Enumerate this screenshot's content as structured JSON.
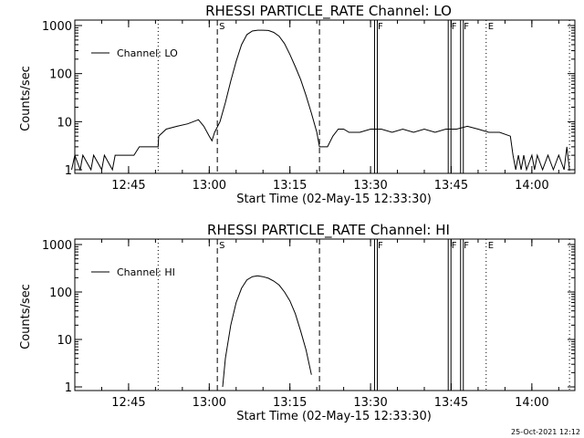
{
  "footer_timestamp": "25-Oct-2021 12:12",
  "chart_data": [
    {
      "type": "line",
      "title": "RHESSI PARTICLE_RATE Channel: LO",
      "xlabel": "Start Time (02-May-15 12:33:30)",
      "ylabel": "Counts/sec",
      "yscale": "log",
      "xlim": [
        "12:35",
        "14:08"
      ],
      "ylim": [
        1,
        1000
      ],
      "x_ticks": [
        "12:45",
        "13:00",
        "13:15",
        "13:30",
        "13:45",
        "14:00"
      ],
      "y_ticks": [
        "1",
        "10",
        "100",
        "1000"
      ],
      "legend": {
        "position": "upper-left",
        "entries": [
          "Channel: LO"
        ]
      },
      "markers": [
        {
          "label": "",
          "time": "12:50.5",
          "style": "dotted"
        },
        {
          "label": "S",
          "time": "13:01.5",
          "style": "dashed"
        },
        {
          "label": "",
          "time": "13:20.5",
          "style": "dashed"
        },
        {
          "label": "F",
          "time": "13:31",
          "style": "double"
        },
        {
          "label": "F",
          "time": "13:44.7",
          "style": "double"
        },
        {
          "label": "F",
          "time": "13:47",
          "style": "double"
        },
        {
          "label": "E",
          "time": "13:51.5",
          "style": "dotted"
        },
        {
          "label": "",
          "time": "14:07",
          "style": "dotted"
        }
      ],
      "series": [
        {
          "name": "Channel: LO",
          "points": [
            [
              "12:34.4",
              1
            ],
            [
              "12:35",
              2
            ],
            [
              "12:36",
              1
            ],
            [
              "12:36.5",
              2
            ],
            [
              "12:38",
              1
            ],
            [
              "12:38.5",
              2
            ],
            [
              "12:40",
              1
            ],
            [
              "12:40.5",
              2
            ],
            [
              "12:42",
              1
            ],
            [
              "12:42.5",
              2
            ],
            [
              "12:45",
              2
            ],
            [
              "12:46",
              2
            ],
            [
              "12:47",
              3
            ],
            [
              "12:50.5",
              3
            ],
            [
              "12:50.6",
              5
            ],
            [
              "12:52",
              7
            ],
            [
              "12:54",
              8
            ],
            [
              "12:56",
              9
            ],
            [
              "12:58",
              11
            ],
            [
              "12:59",
              8
            ],
            [
              "13:00",
              5
            ],
            [
              "13:00.5",
              4
            ],
            [
              "13:01",
              6
            ],
            [
              "13:02",
              10
            ],
            [
              "13:03",
              25
            ],
            [
              "13:04",
              70
            ],
            [
              "13:05",
              180
            ],
            [
              "13:06",
              400
            ],
            [
              "13:07",
              650
            ],
            [
              "13:08",
              770
            ],
            [
              "13:09",
              800
            ],
            [
              "13:10",
              800
            ],
            [
              "13:11",
              790
            ],
            [
              "13:12",
              720
            ],
            [
              "13:13",
              600
            ],
            [
              "13:14",
              420
            ],
            [
              "13:15",
              250
            ],
            [
              "13:16",
              140
            ],
            [
              "13:17",
              75
            ],
            [
              "13:18",
              35
            ],
            [
              "13:19",
              15
            ],
            [
              "13:20",
              6
            ],
            [
              "13:20.5",
              3
            ],
            [
              "13:21",
              3
            ],
            [
              "13:22",
              3
            ],
            [
              "13:23",
              5
            ],
            [
              "13:24",
              7
            ],
            [
              "13:25",
              7
            ],
            [
              "13:26",
              6
            ],
            [
              "13:28",
              6
            ],
            [
              "13:30",
              7
            ],
            [
              "13:32",
              7
            ],
            [
              "13:34",
              6
            ],
            [
              "13:36",
              7
            ],
            [
              "13:38",
              6
            ],
            [
              "13:40",
              7
            ],
            [
              "13:42",
              6
            ],
            [
              "13:44",
              7
            ],
            [
              "13:46",
              7
            ],
            [
              "13:48",
              8
            ],
            [
              "13:50",
              7
            ],
            [
              "13:52",
              6
            ],
            [
              "13:54",
              6
            ],
            [
              "13:56",
              5
            ],
            [
              "13:56.5",
              2
            ],
            [
              "13:57",
              1
            ],
            [
              "13:57.5",
              2
            ],
            [
              "13:58",
              1
            ],
            [
              "13:58.5",
              2
            ],
            [
              "13:59",
              1
            ],
            [
              "14:00",
              2
            ],
            [
              "14:00.5",
              1
            ],
            [
              "14:01",
              2
            ],
            [
              "14:02",
              1
            ],
            [
              "14:03",
              2
            ],
            [
              "14:04",
              1
            ],
            [
              "14:05",
              2
            ],
            [
              "14:06",
              1
            ],
            [
              "14:06.5",
              3
            ],
            [
              "14:07",
              1
            ]
          ]
        }
      ]
    },
    {
      "type": "line",
      "title": "RHESSI PARTICLE_RATE Channel: HI",
      "xlabel": "Start Time (02-May-15 12:33:30)",
      "ylabel": "Counts/sec",
      "yscale": "log",
      "xlim": [
        "12:35",
        "14:08"
      ],
      "ylim": [
        1,
        1000
      ],
      "x_ticks": [
        "12:45",
        "13:00",
        "13:15",
        "13:30",
        "13:45",
        "14:00"
      ],
      "y_ticks": [
        "1",
        "10",
        "100",
        "1000"
      ],
      "legend": {
        "position": "upper-left",
        "entries": [
          "Channel: HI"
        ]
      },
      "markers": [
        {
          "label": "",
          "time": "12:50.5",
          "style": "dotted"
        },
        {
          "label": "S",
          "time": "13:01.5",
          "style": "dashed"
        },
        {
          "label": "",
          "time": "13:20.5",
          "style": "dashed"
        },
        {
          "label": "F",
          "time": "13:31",
          "style": "double"
        },
        {
          "label": "F",
          "time": "13:44.7",
          "style": "double"
        },
        {
          "label": "F",
          "time": "13:47",
          "style": "double"
        },
        {
          "label": "E",
          "time": "13:51.5",
          "style": "dotted"
        },
        {
          "label": "",
          "time": "14:07",
          "style": "dotted"
        }
      ],
      "series": [
        {
          "name": "Channel: HI",
          "points": [
            [
              "13:02.5",
              1
            ],
            [
              "13:03",
              4
            ],
            [
              "13:04",
              20
            ],
            [
              "13:05",
              60
            ],
            [
              "13:06",
              120
            ],
            [
              "13:07",
              180
            ],
            [
              "13:08",
              210
            ],
            [
              "13:09",
              220
            ],
            [
              "13:10",
              210
            ],
            [
              "13:11",
              195
            ],
            [
              "13:12",
              170
            ],
            [
              "13:13",
              140
            ],
            [
              "13:14",
              100
            ],
            [
              "13:15",
              65
            ],
            [
              "13:16",
              35
            ],
            [
              "13:17",
              15
            ],
            [
              "13:18",
              6
            ],
            [
              "13:19",
              1.8
            ]
          ]
        }
      ]
    }
  ]
}
